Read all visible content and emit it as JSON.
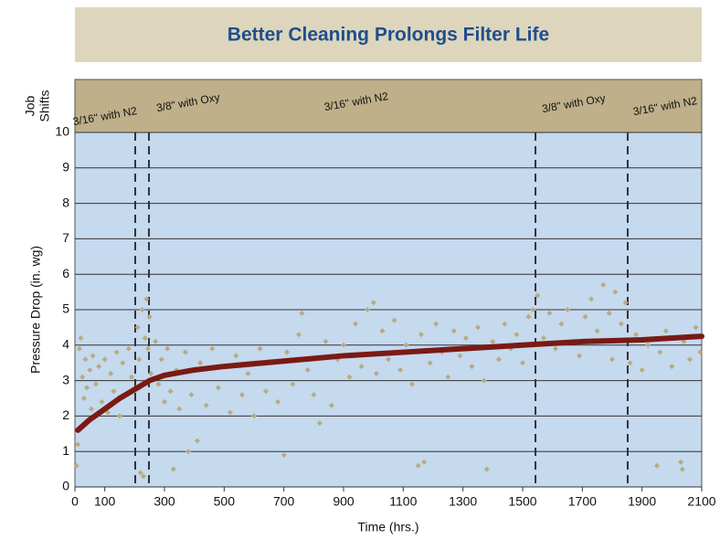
{
  "chart_data": {
    "type": "scatter",
    "title": "Better Cleaning Prolongs Filter Life",
    "xlabel": "Time (hrs.)",
    "ylabel": "Pressure Drop (in. wg)",
    "band_label": [
      "Job",
      "Shifts"
    ],
    "shift_labels": [
      "3/16\" with N2",
      "3/8\" with Oxy",
      "3/16\" with N2",
      "3/8\" with Oxy",
      "3/16\" with N2"
    ],
    "shift_boundaries": [
      202,
      248,
      1543,
      1852
    ],
    "xlim": [
      0,
      2100
    ],
    "ylim": [
      0,
      10
    ],
    "xticks": [
      0,
      100,
      300,
      500,
      700,
      900,
      1100,
      1300,
      1500,
      1700,
      1900,
      2100
    ],
    "yticks": [
      0,
      1,
      2,
      3,
      4,
      5,
      6,
      7,
      8,
      9,
      10
    ],
    "grid": true,
    "series": [
      {
        "color": "#b8ab7d",
        "x": [
          5,
          10,
          15,
          20,
          25,
          30,
          35,
          40,
          50,
          55,
          60,
          70,
          80,
          90,
          100,
          110,
          120,
          130,
          140,
          150,
          160,
          170,
          180,
          190,
          205,
          210,
          215,
          220,
          225,
          230,
          235,
          240,
          245,
          250,
          255,
          270,
          280,
          290,
          300,
          310,
          320,
          330,
          340,
          350,
          370,
          380,
          390,
          410,
          420,
          440,
          460,
          480,
          500,
          520,
          540,
          560,
          580,
          600,
          620,
          640,
          660,
          680,
          700,
          710,
          730,
          750,
          760,
          780,
          800,
          820,
          840,
          860,
          880,
          900,
          920,
          940,
          960,
          980,
          1000,
          1010,
          1030,
          1050,
          1070,
          1090,
          1110,
          1130,
          1150,
          1160,
          1170,
          1190,
          1210,
          1230,
          1250,
          1270,
          1290,
          1310,
          1330,
          1350,
          1370,
          1380,
          1400,
          1420,
          1440,
          1460,
          1480,
          1500,
          1520,
          1535,
          1550,
          1570,
          1590,
          1610,
          1630,
          1650,
          1670,
          1690,
          1710,
          1730,
          1750,
          1770,
          1790,
          1800,
          1810,
          1830,
          1845,
          1860,
          1880,
          1900,
          1920,
          1950,
          1960,
          1980,
          2000,
          2030,
          2035,
          2040,
          2060,
          2080,
          2095
        ],
        "values": [
          0.6,
          1.2,
          3.9,
          4.2,
          3.1,
          2.5,
          3.6,
          2.8,
          3.3,
          2.2,
          3.7,
          2.9,
          3.4,
          2.4,
          3.6,
          2.1,
          3.2,
          2.7,
          3.8,
          2.0,
          3.5,
          2.6,
          3.9,
          3.1,
          2.8,
          4.5,
          3.6,
          0.4,
          5.0,
          0.3,
          4.2,
          5.3,
          3.9,
          4.8,
          3.2,
          4.1,
          2.9,
          3.6,
          2.4,
          3.9,
          2.7,
          0.5,
          3.3,
          2.2,
          3.8,
          1.0,
          2.6,
          1.3,
          3.5,
          2.3,
          3.9,
          2.8,
          3.4,
          2.1,
          3.7,
          2.6,
          3.2,
          2.0,
          3.9,
          2.7,
          3.5,
          2.4,
          0.9,
          3.8,
          2.9,
          4.3,
          4.9,
          3.3,
          2.6,
          1.8,
          4.1,
          2.3,
          3.6,
          4.0,
          3.1,
          4.6,
          3.4,
          5.0,
          5.2,
          3.2,
          4.4,
          3.6,
          4.7,
          3.3,
          4.0,
          2.9,
          0.6,
          4.3,
          0.7,
          3.5,
          4.6,
          3.8,
          3.1,
          4.4,
          3.7,
          4.2,
          3.4,
          4.5,
          3.0,
          0.5,
          4.1,
          3.6,
          4.6,
          3.9,
          4.3,
          3.5,
          4.8,
          5.0,
          5.4,
          4.2,
          4.9,
          3.9,
          4.6,
          5.0,
          4.1,
          3.7,
          4.8,
          5.3,
          4.4,
          5.7,
          4.9,
          3.6,
          5.5,
          4.6,
          5.2,
          3.5,
          4.3,
          3.3,
          4.0,
          0.6,
          3.8,
          4.4,
          3.4,
          0.7,
          0.5,
          4.1,
          3.6,
          4.5,
          3.8
        ]
      },
      {
        "color": "#7a1a14",
        "x": [
          10,
          50,
          100,
          150,
          200,
          250,
          300,
          400,
          500,
          700,
          900,
          1100,
          1300,
          1500,
          1700,
          1900,
          2100
        ],
        "values": [
          1.6,
          1.9,
          2.2,
          2.5,
          2.75,
          3.0,
          3.15,
          3.3,
          3.4,
          3.55,
          3.7,
          3.8,
          3.9,
          4.0,
          4.1,
          4.15,
          4.25
        ]
      }
    ]
  }
}
